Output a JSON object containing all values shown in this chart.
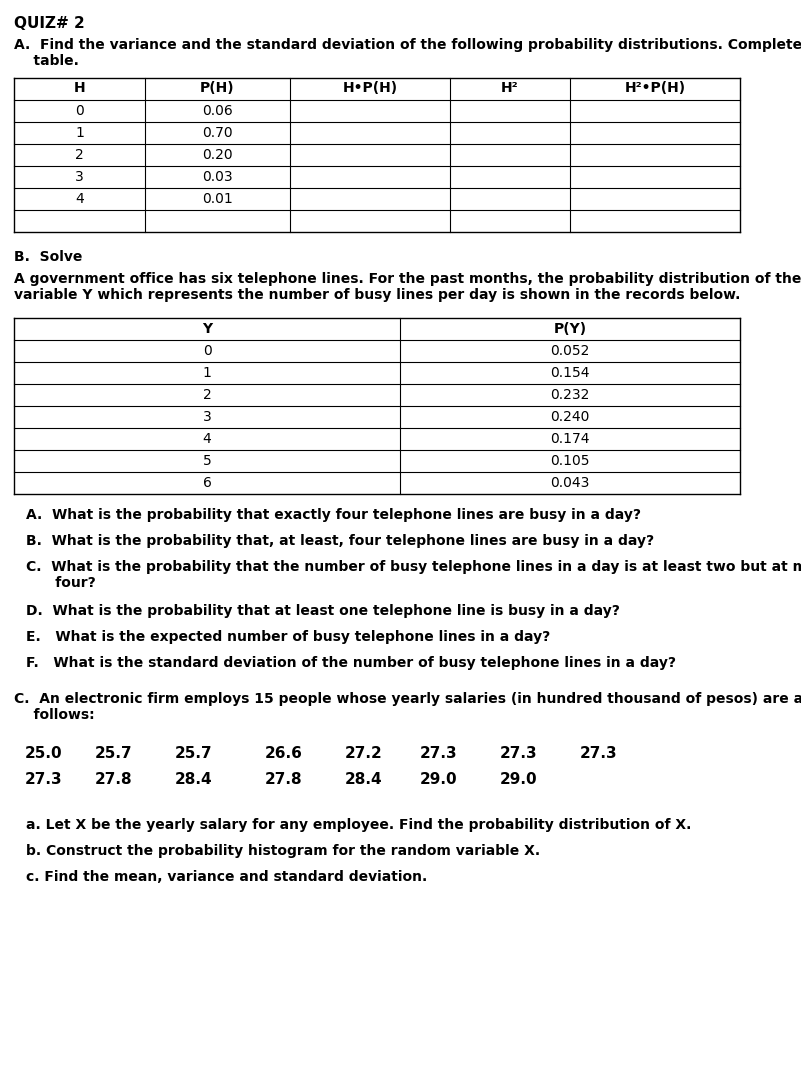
{
  "title": "QUIZ# 2",
  "section_a_header": "A.  Find the variance and the standard deviation of the following probability distributions. Complete the\n    table.",
  "table_a_headers": [
    "H",
    "P(H)",
    "H•P(H)",
    "H²",
    "H²•P(H)"
  ],
  "table_a_rows": [
    [
      "0",
      "0.06",
      "",
      "",
      ""
    ],
    [
      "1",
      "0.70",
      "",
      "",
      ""
    ],
    [
      "2",
      "0.20",
      "",
      "",
      ""
    ],
    [
      "3",
      "0.03",
      "",
      "",
      ""
    ],
    [
      "4",
      "0.01",
      "",
      "",
      ""
    ],
    [
      "",
      "",
      "",
      "",
      ""
    ]
  ],
  "section_b_header": "B.  Solve",
  "section_b_para": "A government office has six telephone lines. For the past months, the probability distribution of the random\nvariable Y which represents the number of busy lines per day is shown in the records below.",
  "table_b_headers": [
    "Y",
    "P(Y)"
  ],
  "table_b_rows": [
    [
      "0",
      "0.052"
    ],
    [
      "1",
      "0.154"
    ],
    [
      "2",
      "0.232"
    ],
    [
      "3",
      "0.240"
    ],
    [
      "4",
      "0.174"
    ],
    [
      "5",
      "0.105"
    ],
    [
      "6",
      "0.043"
    ]
  ],
  "questions_b": [
    "A.  What is the probability that exactly four telephone lines are busy in a day?",
    "B.  What is the probability that, at least, four telephone lines are busy in a day?",
    "C.  What is the probability that the number of busy telephone lines in a day is at least two but at most\n      four?",
    "D.  What is the probability that at least one telephone line is busy in a day?",
    "E.   What is the expected number of busy telephone lines in a day?",
    "F.   What is the standard deviation of the number of busy telephone lines in a day?"
  ],
  "section_c_header": "C.  An electronic firm employs 15 people whose yearly salaries (in hundred thousand of pesos) are as\n    follows:",
  "salary_row1": [
    "25.0",
    "25.7",
    "25.7",
    "26.6",
    "27.2",
    "27.3",
    "27.3",
    "27.3"
  ],
  "salary_row2": [
    "27.3",
    "27.8",
    "28.4",
    "27.8",
    "28.4",
    "29.0",
    "29.0"
  ],
  "questions_c": [
    "a. Let X be the yearly salary for any employee. Find the probability distribution of X.",
    "b. Construct the probability histogram for the random variable X.",
    "c. Find the mean, variance and standard deviation."
  ],
  "bg_color": "#ffffff",
  "text_color": "#000000",
  "table_line_color": "#000000"
}
